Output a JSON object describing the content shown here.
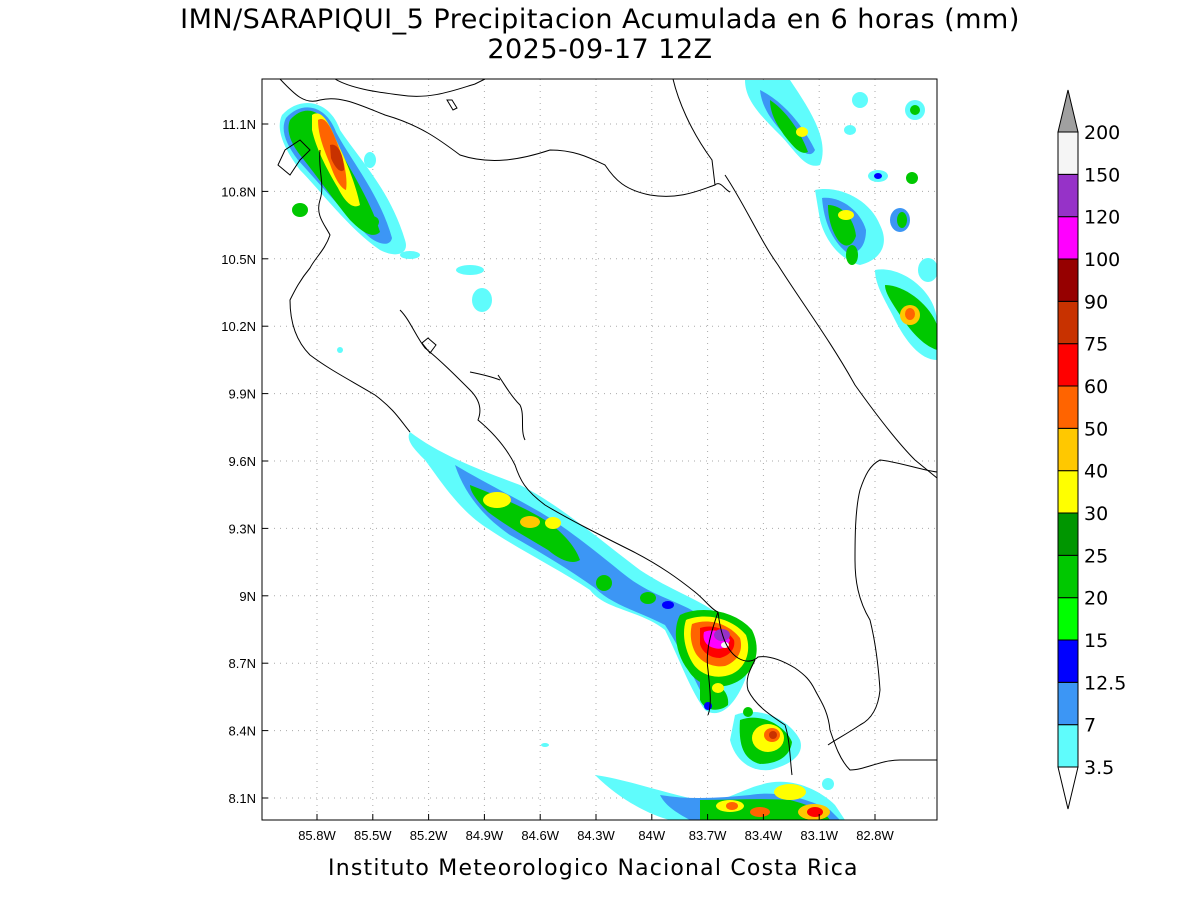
{
  "title": {
    "line1": "IMN/SARAPIQUI_5 Precipitacion Acumulada en 6 horas (mm)",
    "line2": "2025-09-17 12Z"
  },
  "footer": "Instituto Meteorologico Nacional Costa Rica",
  "map": {
    "lon_range": [
      -86.0,
      -82.6
    ],
    "lat_range": [
      8.0,
      11.3
    ],
    "lon_ticks": [
      {
        "value": -85.8,
        "label": "85.8W"
      },
      {
        "value": -85.5,
        "label": "85.5W"
      },
      {
        "value": -85.2,
        "label": "85.2W"
      },
      {
        "value": -84.9,
        "label": "84.9W"
      },
      {
        "value": -84.6,
        "label": "84.6W"
      },
      {
        "value": -84.3,
        "label": "84.3W"
      },
      {
        "value": -84.0,
        "label": "84W"
      },
      {
        "value": -83.7,
        "label": "83.7W"
      },
      {
        "value": -83.4,
        "label": "83.4W"
      },
      {
        "value": -83.1,
        "label": "83.1W"
      },
      {
        "value": -82.8,
        "label": "82.8W"
      }
    ],
    "lat_ticks": [
      {
        "value": 11.1,
        "label": "11.1N"
      },
      {
        "value": 10.8,
        "label": "10.8N"
      },
      {
        "value": 10.5,
        "label": "10.5N"
      },
      {
        "value": 10.2,
        "label": "10.2N"
      },
      {
        "value": 9.9,
        "label": "9.9N"
      },
      {
        "value": 9.6,
        "label": "9.6N"
      },
      {
        "value": 9.3,
        "label": "9.3N"
      },
      {
        "value": 9.0,
        "label": "9N"
      },
      {
        "value": 8.7,
        "label": "8.7N"
      },
      {
        "value": 8.4,
        "label": "8.4N"
      },
      {
        "value": 8.1,
        "label": "8.1N"
      }
    ],
    "grid": "dotted"
  },
  "colorbar": {
    "levels": [
      {
        "value": "3.5",
        "color": "#5ffcfc"
      },
      {
        "value": "7",
        "color": "#3c96f5"
      },
      {
        "value": "12.5",
        "color": "#0000ff"
      },
      {
        "value": "15",
        "color": "#00ff00"
      },
      {
        "value": "20",
        "color": "#00c800"
      },
      {
        "value": "25",
        "color": "#009600"
      },
      {
        "value": "30",
        "color": "#ffff00"
      },
      {
        "value": "40",
        "color": "#ffc800"
      },
      {
        "value": "50",
        "color": "#ff6400"
      },
      {
        "value": "60",
        "color": "#ff0000"
      },
      {
        "value": "75",
        "color": "#c83200"
      },
      {
        "value": "90",
        "color": "#960000"
      },
      {
        "value": "100",
        "color": "#ff00ff"
      },
      {
        "value": "120",
        "color": "#9632c8"
      },
      {
        "value": "150",
        "color": "#f5f5f5"
      },
      {
        "value": "200",
        "color": "#a0a0a0"
      }
    ]
  }
}
